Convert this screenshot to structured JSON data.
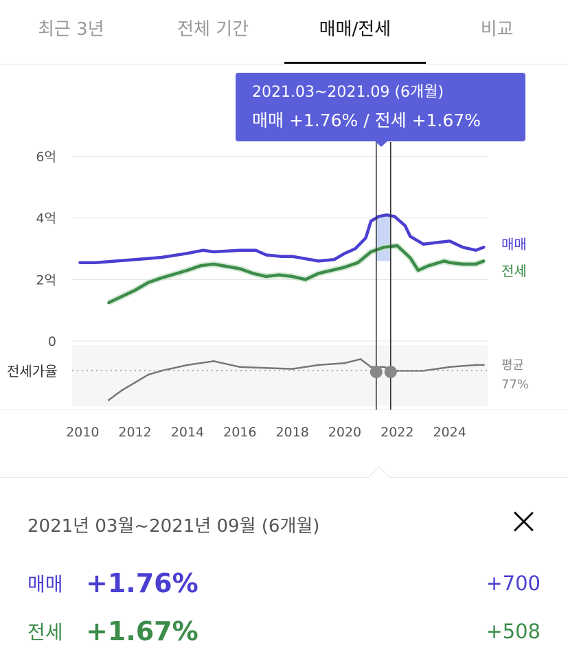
{
  "tabs": [
    {
      "label": "최근 3년",
      "active": false
    },
    {
      "label": "전체 기간",
      "active": false
    },
    {
      "label": "매매/전세",
      "active": true
    },
    {
      "label": "비교",
      "active": false
    }
  ],
  "tooltip": {
    "period": "2021.03~2021.09 (6개월)",
    "summary": "매매 +1.76%  /  전세 +1.67%"
  },
  "chart_data": {
    "type": "line",
    "y_ticks": [
      "6억",
      "4억",
      "2억",
      "0"
    ],
    "x_ticks": [
      "2010",
      "2012",
      "2014",
      "2016",
      "2018",
      "2020",
      "2022",
      "2024"
    ],
    "series": [
      {
        "name": "매매",
        "color": "#4b3fd1",
        "x": [
          2009.9,
          2010.5,
          2011,
          2012,
          2013,
          2014,
          2014.6,
          2015,
          2016,
          2016.6,
          2017,
          2017.6,
          2018,
          2019,
          2019.6,
          2020,
          2020.4,
          2020.8,
          2021.0,
          2021.3,
          2021.6,
          2021.9,
          2022.3,
          2022.5,
          2023,
          2023.5,
          2024,
          2024.5,
          2025,
          2025.3
        ],
        "values": [
          2.55,
          2.55,
          2.58,
          2.65,
          2.72,
          2.85,
          2.95,
          2.9,
          2.95,
          2.95,
          2.8,
          2.75,
          2.75,
          2.6,
          2.65,
          2.85,
          3.0,
          3.35,
          3.9,
          4.05,
          4.1,
          4.05,
          3.75,
          3.4,
          3.15,
          3.2,
          3.25,
          3.05,
          2.95,
          3.05
        ]
      },
      {
        "name": "전세",
        "color": "#3c8c4a",
        "x": [
          2011.0,
          2011.5,
          2012,
          2012.5,
          2013,
          2014,
          2014.5,
          2015,
          2016,
          2016.5,
          2017,
          2017.5,
          2018,
          2018.5,
          2019,
          2019.5,
          2020,
          2020.5,
          2021,
          2021.5,
          2022,
          2022.5,
          2022.8,
          2023.2,
          2023.8,
          2024,
          2024.5,
          2025,
          2025.3
        ],
        "values": [
          1.25,
          1.45,
          1.65,
          1.9,
          2.05,
          2.3,
          2.45,
          2.5,
          2.35,
          2.2,
          2.1,
          2.15,
          2.1,
          2.0,
          2.2,
          2.3,
          2.4,
          2.55,
          2.9,
          3.05,
          3.1,
          2.7,
          2.3,
          2.45,
          2.6,
          2.55,
          2.5,
          2.5,
          2.6
        ]
      },
      {
        "name": "전세가율",
        "color": "#777777",
        "x": [
          2011.0,
          2011.5,
          2012,
          2012.5,
          2013,
          2014,
          2015,
          2016,
          2017,
          2018,
          2019,
          2020,
          2020.6,
          2021,
          2021.5,
          2022,
          2023,
          2024,
          2025,
          2025.3
        ],
        "values": [
          40,
          50,
          58,
          66,
          70,
          76,
          80,
          74,
          73,
          72,
          76,
          78,
          82,
          74,
          74,
          70,
          70,
          74,
          76,
          76
        ]
      }
    ],
    "ratio_avg_label": "평균",
    "ratio_avg_value": "77%",
    "ratio_label": "전세가율",
    "highlight": {
      "start": 2021.2,
      "end": 2021.75
    }
  },
  "detail": {
    "period": "2021년 03월~2021년 09월 (6개월)",
    "sale": {
      "label": "매매",
      "pct": "+1.76%",
      "abs": "+700"
    },
    "rent": {
      "label": "전세",
      "pct": "+1.67%",
      "abs": "+508"
    }
  }
}
